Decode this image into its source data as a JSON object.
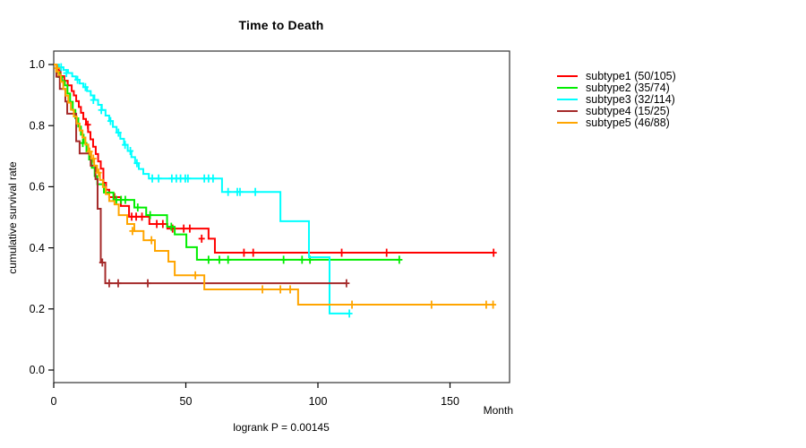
{
  "title": "Time to Death",
  "x_axis_label": "Month",
  "y_axis_label": "cumulative survival rate",
  "annotation": "logrank P = 0.00145",
  "chart_data": {
    "type": "line",
    "variant": "kaplan-meier-step-survival",
    "title": "Time to Death",
    "xlabel": "Month",
    "ylabel": "cumulative survival rate",
    "annotation": "logrank P = 0.00145",
    "xlim": [
      0,
      172.5
    ],
    "ylim": [
      -0.04,
      1.04
    ],
    "x_ticks": [
      0,
      50,
      100,
      150
    ],
    "y_ticks": [
      0.0,
      0.2,
      0.4,
      0.6,
      0.8,
      1.0
    ],
    "grid": false,
    "legend_position": "right-outside",
    "frame_color": "#333333",
    "series": [
      {
        "name": "subtype1",
        "label": "subtype1 (50/105)",
        "events": 50,
        "n": 105,
        "color": "#ff0000",
        "steps": [
          [
            0,
            1.0
          ],
          [
            1.5,
            0.981
          ],
          [
            2.6,
            0.962
          ],
          [
            4.0,
            0.947
          ],
          [
            5.3,
            0.932
          ],
          [
            6.8,
            0.913
          ],
          [
            7.6,
            0.899
          ],
          [
            8.5,
            0.88
          ],
          [
            9.5,
            0.861
          ],
          [
            10.3,
            0.842
          ],
          [
            11.2,
            0.822
          ],
          [
            12.2,
            0.803
          ],
          [
            13.0,
            0.779
          ],
          [
            13.9,
            0.755
          ],
          [
            14.9,
            0.731
          ],
          [
            15.9,
            0.707
          ],
          [
            16.8,
            0.683
          ],
          [
            17.8,
            0.659
          ],
          [
            18.8,
            0.613
          ],
          [
            19.8,
            0.59
          ],
          [
            21.0,
            0.566
          ],
          [
            25.4,
            0.537
          ],
          [
            28.5,
            0.502
          ],
          [
            36.2,
            0.478
          ],
          [
            43.0,
            0.463
          ],
          [
            58.6,
            0.43
          ],
          [
            61.0,
            0.384
          ],
          [
            166.5,
            0.384
          ]
        ],
        "censors": [
          [
            1.8,
            0.981
          ],
          [
            12.9,
            0.803
          ],
          [
            23.0,
            0.566
          ],
          [
            29.5,
            0.502
          ],
          [
            31.2,
            0.502
          ],
          [
            33.4,
            0.502
          ],
          [
            39.0,
            0.478
          ],
          [
            41.3,
            0.478
          ],
          [
            45.0,
            0.463
          ],
          [
            49.2,
            0.463
          ],
          [
            51.5,
            0.463
          ],
          [
            56.0,
            0.43
          ],
          [
            72.0,
            0.384
          ],
          [
            75.5,
            0.384
          ],
          [
            109.0,
            0.384
          ],
          [
            126.0,
            0.384
          ],
          [
            166.5,
            0.384
          ]
        ]
      },
      {
        "name": "subtype2",
        "label": "subtype2 (35/74)",
        "events": 35,
        "n": 74,
        "color": "#00ee00",
        "steps": [
          [
            0,
            1.0
          ],
          [
            1.0,
            0.973
          ],
          [
            2.1,
            0.959
          ],
          [
            3.1,
            0.946
          ],
          [
            4.2,
            0.932
          ],
          [
            5.2,
            0.905
          ],
          [
            6.2,
            0.878
          ],
          [
            7.2,
            0.851
          ],
          [
            8.2,
            0.824
          ],
          [
            9.3,
            0.797
          ],
          [
            10.3,
            0.77
          ],
          [
            11.3,
            0.743
          ],
          [
            12.4,
            0.716
          ],
          [
            13.4,
            0.689
          ],
          [
            14.4,
            0.662
          ],
          [
            15.5,
            0.635
          ],
          [
            16.5,
            0.608
          ],
          [
            19.0,
            0.581
          ],
          [
            22.6,
            0.557
          ],
          [
            30.5,
            0.532
          ],
          [
            35.0,
            0.507
          ],
          [
            42.9,
            0.469
          ],
          [
            45.8,
            0.444
          ],
          [
            50.2,
            0.402
          ],
          [
            54.2,
            0.361
          ],
          [
            130.8,
            0.361
          ]
        ],
        "censors": [
          [
            2.5,
            0.959
          ],
          [
            11.0,
            0.743
          ],
          [
            23.7,
            0.557
          ],
          [
            25.5,
            0.557
          ],
          [
            27.1,
            0.557
          ],
          [
            31.8,
            0.532
          ],
          [
            36.5,
            0.507
          ],
          [
            44.5,
            0.469
          ],
          [
            58.6,
            0.361
          ],
          [
            62.7,
            0.361
          ],
          [
            66.0,
            0.361
          ],
          [
            87.0,
            0.361
          ],
          [
            94.0,
            0.361
          ],
          [
            97.0,
            0.361
          ],
          [
            130.8,
            0.361
          ]
        ]
      },
      {
        "name": "subtype3",
        "label": "subtype3 (32/114)",
        "events": 32,
        "n": 114,
        "color": "#00ffff",
        "steps": [
          [
            0,
            1.0
          ],
          [
            2.0,
            0.991
          ],
          [
            3.7,
            0.982
          ],
          [
            5.4,
            0.972
          ],
          [
            7.0,
            0.961
          ],
          [
            8.4,
            0.95
          ],
          [
            9.8,
            0.938
          ],
          [
            11.2,
            0.926
          ],
          [
            12.6,
            0.913
          ],
          [
            14.0,
            0.899
          ],
          [
            15.4,
            0.884
          ],
          [
            16.8,
            0.868
          ],
          [
            18.2,
            0.851
          ],
          [
            19.6,
            0.833
          ],
          [
            21.0,
            0.815
          ],
          [
            22.4,
            0.796
          ],
          [
            23.8,
            0.777
          ],
          [
            25.2,
            0.757
          ],
          [
            26.6,
            0.737
          ],
          [
            28.0,
            0.717
          ],
          [
            29.4,
            0.697
          ],
          [
            30.8,
            0.677
          ],
          [
            32.2,
            0.658
          ],
          [
            33.9,
            0.642
          ],
          [
            36.0,
            0.627
          ],
          [
            63.7,
            0.583
          ],
          [
            85.8,
            0.487
          ],
          [
            96.6,
            0.369
          ],
          [
            104.4,
            0.185
          ],
          [
            111.9,
            0.185
          ]
        ],
        "censors": [
          [
            2.8,
            0.991
          ],
          [
            4.8,
            0.972
          ],
          [
            9.0,
            0.95
          ],
          [
            12.0,
            0.926
          ],
          [
            15.0,
            0.884
          ],
          [
            18.0,
            0.851
          ],
          [
            21.5,
            0.815
          ],
          [
            24.5,
            0.777
          ],
          [
            27.0,
            0.737
          ],
          [
            29.0,
            0.717
          ],
          [
            31.5,
            0.677
          ],
          [
            37.3,
            0.627
          ],
          [
            39.7,
            0.627
          ],
          [
            44.7,
            0.627
          ],
          [
            46.4,
            0.627
          ],
          [
            48.0,
            0.627
          ],
          [
            49.8,
            0.627
          ],
          [
            50.8,
            0.627
          ],
          [
            57.0,
            0.627
          ],
          [
            58.6,
            0.627
          ],
          [
            60.3,
            0.627
          ],
          [
            66.0,
            0.583
          ],
          [
            69.5,
            0.583
          ],
          [
            70.5,
            0.583
          ],
          [
            76.3,
            0.583
          ],
          [
            111.9,
            0.185
          ]
        ]
      },
      {
        "name": "subtype4",
        "label": "subtype4 (15/25)",
        "events": 15,
        "n": 25,
        "color": "#a52a2a",
        "steps": [
          [
            0,
            1.0
          ],
          [
            1.0,
            0.96
          ],
          [
            2.3,
            0.92
          ],
          [
            4.4,
            0.879
          ],
          [
            5.1,
            0.839
          ],
          [
            8.5,
            0.749
          ],
          [
            9.8,
            0.709
          ],
          [
            14.0,
            0.669
          ],
          [
            15.8,
            0.625
          ],
          [
            16.6,
            0.528
          ],
          [
            17.8,
            0.352
          ],
          [
            19.5,
            0.284
          ],
          [
            110.8,
            0.284
          ]
        ],
        "censors": [
          [
            18.4,
            0.352
          ],
          [
            21.0,
            0.284
          ],
          [
            24.4,
            0.284
          ],
          [
            35.6,
            0.284
          ],
          [
            110.8,
            0.284
          ]
        ]
      },
      {
        "name": "subtype5",
        "label": "subtype5 (46/88)",
        "events": 46,
        "n": 88,
        "color": "#ffa500",
        "steps": [
          [
            0,
            1.0
          ],
          [
            0.9,
            0.977
          ],
          [
            1.8,
            0.966
          ],
          [
            2.7,
            0.943
          ],
          [
            3.6,
            0.92
          ],
          [
            4.5,
            0.898
          ],
          [
            5.5,
            0.875
          ],
          [
            6.5,
            0.852
          ],
          [
            7.6,
            0.83
          ],
          [
            8.7,
            0.807
          ],
          [
            9.8,
            0.784
          ],
          [
            10.9,
            0.761
          ],
          [
            12.0,
            0.738
          ],
          [
            13.1,
            0.715
          ],
          [
            14.2,
            0.692
          ],
          [
            15.3,
            0.669
          ],
          [
            16.4,
            0.646
          ],
          [
            17.5,
            0.622
          ],
          [
            18.6,
            0.599
          ],
          [
            19.7,
            0.576
          ],
          [
            21.0,
            0.553
          ],
          [
            23.0,
            0.542
          ],
          [
            24.6,
            0.507
          ],
          [
            27.8,
            0.478
          ],
          [
            30.5,
            0.455
          ],
          [
            34.0,
            0.425
          ],
          [
            38.3,
            0.39
          ],
          [
            43.4,
            0.355
          ],
          [
            45.8,
            0.31
          ],
          [
            57.0,
            0.264
          ],
          [
            92.5,
            0.214
          ],
          [
            166.8,
            0.214
          ]
        ],
        "censors": [
          [
            1.3,
            0.988
          ],
          [
            13.6,
            0.715
          ],
          [
            15.0,
            0.692
          ],
          [
            17.0,
            0.646
          ],
          [
            29.8,
            0.455
          ],
          [
            37.0,
            0.425
          ],
          [
            53.6,
            0.31
          ],
          [
            79.0,
            0.264
          ],
          [
            85.8,
            0.264
          ],
          [
            89.5,
            0.264
          ],
          [
            112.9,
            0.214
          ],
          [
            143.0,
            0.214
          ],
          [
            163.7,
            0.214
          ],
          [
            166.3,
            0.214
          ]
        ]
      }
    ]
  }
}
